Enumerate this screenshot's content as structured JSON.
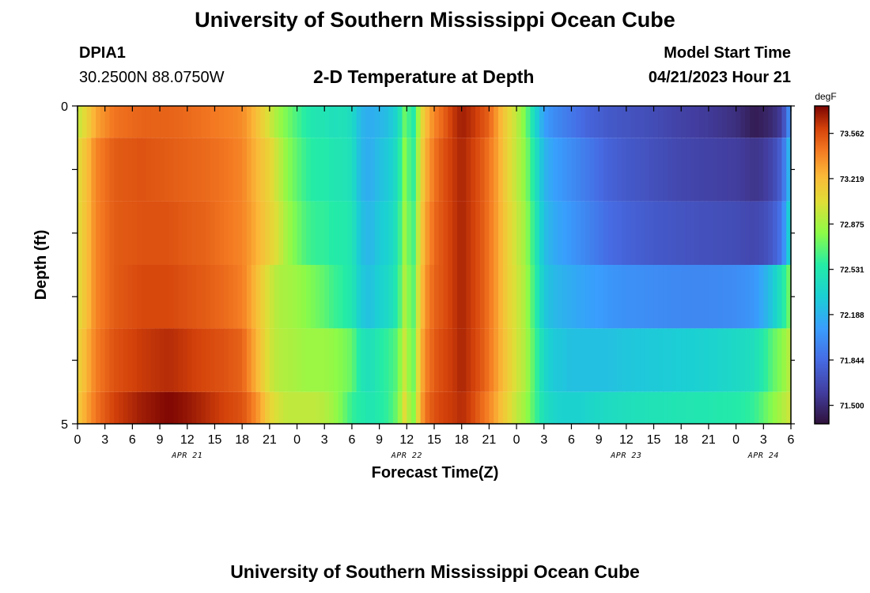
{
  "page": {
    "title": "University of Southern Mississippi Ocean Cube",
    "station_id": "DPIA1",
    "station_coords": "30.2500N  88.0750W",
    "plot_subtitle": "2-D Temperature at Depth",
    "model_start_label": "Model Start Time",
    "model_start_value": "04/21/2023 Hour 21",
    "footer_title": "University of Southern Mississippi Ocean Cube"
  },
  "chart_data": {
    "type": "heatmap",
    "title": "2-D Temperature at Depth",
    "xlabel": "Forecast Time(Z)",
    "ylabel": "Depth (ft)",
    "x_start": "04/21/2023 Hour 00",
    "x_tick_labels": [
      "0",
      "3",
      "6",
      "9",
      "12",
      "15",
      "18",
      "21",
      "0",
      "3",
      "6",
      "9",
      "12",
      "15",
      "18",
      "21",
      "0",
      "3",
      "6",
      "9",
      "12",
      "15",
      "18",
      "21",
      "0",
      "3",
      "6"
    ],
    "x_date_labels": [
      {
        "label": "APR 21",
        "hour": 12
      },
      {
        "label": "APR 22",
        "hour": 36
      },
      {
        "label": "APR 23",
        "hour": 60
      },
      {
        "label": "APR 24",
        "hour": 75
      }
    ],
    "xlim_hours": [
      0,
      78
    ],
    "y_tick_labels": [
      "0",
      "5"
    ],
    "ylim": [
      0,
      5
    ],
    "depth_levels_ft": [
      0,
      1,
      2,
      3,
      4,
      5
    ],
    "colorbar": {
      "unit": "degF",
      "tick_labels": [
        "73.562",
        "73.219",
        "72.875",
        "72.531",
        "72.188",
        "71.844",
        "71.500"
      ],
      "min": 71.36,
      "max": 73.77
    },
    "profile_hours": [
      0,
      1,
      2,
      4,
      7,
      10,
      12,
      14,
      16,
      18,
      19,
      20,
      21,
      22,
      23,
      24,
      25,
      26,
      27,
      28,
      29,
      30,
      31,
      32,
      33,
      34,
      35,
      35.5,
      36,
      36.5,
      37,
      37.5,
      38,
      39,
      40,
      41,
      42,
      43,
      44,
      45,
      46,
      47,
      48,
      49,
      50,
      51,
      52,
      53,
      54,
      55,
      56,
      57,
      58,
      60,
      63,
      66,
      69,
      72,
      74,
      75,
      76,
      77,
      78
    ],
    "temperature_degF": [
      [
        72.95,
        73.1,
        73.3,
        73.45,
        73.5,
        73.5,
        73.48,
        73.45,
        73.42,
        73.38,
        73.28,
        73.15,
        73.0,
        72.85,
        72.75,
        72.65,
        72.55,
        72.5,
        72.5,
        72.45,
        72.48,
        72.42,
        72.2,
        72.15,
        72.2,
        72.25,
        72.4,
        72.6,
        72.85,
        72.4,
        72.7,
        73.0,
        73.2,
        73.4,
        73.5,
        73.62,
        73.7,
        73.65,
        73.58,
        73.5,
        73.3,
        73.1,
        72.95,
        72.75,
        72.4,
        72.1,
        72.0,
        71.95,
        71.9,
        71.85,
        71.8,
        71.78,
        71.75,
        71.72,
        71.68,
        71.62,
        71.58,
        71.52,
        71.42,
        71.45,
        71.5,
        71.6,
        72.1
      ],
      [
        73.05,
        73.2,
        73.4,
        73.52,
        73.55,
        73.52,
        73.5,
        73.48,
        73.45,
        73.4,
        73.3,
        73.2,
        73.1,
        72.95,
        72.8,
        72.7,
        72.6,
        72.55,
        72.55,
        72.5,
        72.5,
        72.45,
        72.2,
        72.15,
        72.25,
        72.3,
        72.45,
        72.7,
        72.9,
        72.45,
        72.75,
        73.05,
        73.25,
        73.45,
        73.55,
        73.62,
        73.68,
        73.62,
        73.55,
        73.45,
        73.3,
        73.1,
        72.95,
        72.8,
        72.5,
        72.2,
        72.1,
        72.05,
        72.0,
        71.95,
        71.9,
        71.85,
        71.8,
        71.75,
        71.7,
        71.65,
        71.62,
        71.6,
        71.55,
        71.58,
        71.65,
        71.8,
        72.3
      ],
      [
        73.05,
        73.2,
        73.4,
        73.52,
        73.55,
        73.55,
        73.52,
        73.5,
        73.45,
        73.4,
        73.32,
        73.22,
        73.12,
        73.0,
        72.85,
        72.75,
        72.65,
        72.6,
        72.6,
        72.55,
        72.55,
        72.5,
        72.25,
        72.2,
        72.3,
        72.35,
        72.5,
        72.75,
        72.95,
        72.5,
        72.8,
        73.1,
        73.3,
        73.48,
        73.55,
        73.62,
        73.68,
        73.62,
        73.55,
        73.45,
        73.3,
        73.12,
        72.98,
        72.85,
        72.55,
        72.25,
        72.15,
        72.1,
        72.05,
        72.0,
        71.95,
        71.9,
        71.85,
        71.8,
        71.75,
        71.72,
        71.7,
        71.68,
        71.65,
        71.68,
        71.75,
        71.9,
        72.45
      ],
      [
        73.05,
        73.2,
        73.4,
        73.52,
        73.58,
        73.58,
        73.55,
        73.52,
        73.48,
        73.42,
        73.3,
        73.15,
        73.0,
        72.9,
        72.88,
        72.85,
        72.8,
        72.75,
        72.7,
        72.62,
        72.58,
        72.52,
        72.3,
        72.25,
        72.35,
        72.4,
        72.55,
        72.8,
        73.0,
        72.55,
        72.85,
        73.15,
        73.35,
        73.5,
        73.55,
        73.62,
        73.68,
        73.62,
        73.55,
        73.45,
        73.3,
        73.12,
        73.0,
        72.88,
        72.6,
        72.3,
        72.22,
        72.18,
        72.15,
        72.12,
        72.1,
        72.08,
        72.05,
        72.02,
        72.0,
        71.98,
        71.98,
        72.0,
        72.05,
        72.15,
        72.3,
        72.5,
        72.8
      ],
      [
        73.1,
        73.25,
        73.42,
        73.55,
        73.62,
        73.66,
        73.62,
        73.58,
        73.55,
        73.5,
        73.35,
        73.18,
        73.0,
        72.92,
        72.9,
        72.88,
        72.85,
        72.85,
        72.85,
        72.82,
        72.78,
        72.72,
        72.5,
        72.45,
        72.55,
        72.6,
        72.7,
        72.9,
        73.05,
        72.6,
        72.9,
        73.2,
        73.4,
        73.52,
        73.58,
        73.62,
        73.68,
        73.62,
        73.55,
        73.45,
        73.3,
        73.15,
        73.0,
        72.9,
        72.65,
        72.4,
        72.3,
        72.28,
        72.25,
        72.25,
        72.25,
        72.25,
        72.25,
        72.28,
        72.3,
        72.32,
        72.35,
        72.4,
        72.45,
        72.55,
        72.7,
        72.8,
        72.95
      ],
      [
        73.15,
        73.3,
        73.45,
        73.6,
        73.7,
        73.76,
        73.72,
        73.66,
        73.6,
        73.55,
        73.45,
        73.3,
        73.1,
        73.0,
        72.95,
        72.95,
        72.95,
        72.95,
        72.92,
        72.85,
        72.75,
        72.6,
        72.55,
        72.5,
        72.55,
        72.6,
        72.75,
        72.95,
        73.15,
        72.65,
        72.95,
        73.25,
        73.45,
        73.55,
        73.6,
        73.62,
        73.66,
        73.6,
        73.5,
        73.4,
        73.25,
        73.1,
        72.95,
        72.85,
        72.65,
        72.45,
        72.38,
        72.35,
        72.35,
        72.35,
        72.38,
        72.4,
        72.42,
        72.45,
        72.48,
        72.5,
        72.52,
        72.55,
        72.6,
        72.7,
        72.8,
        72.9,
        73.0
      ]
    ]
  }
}
